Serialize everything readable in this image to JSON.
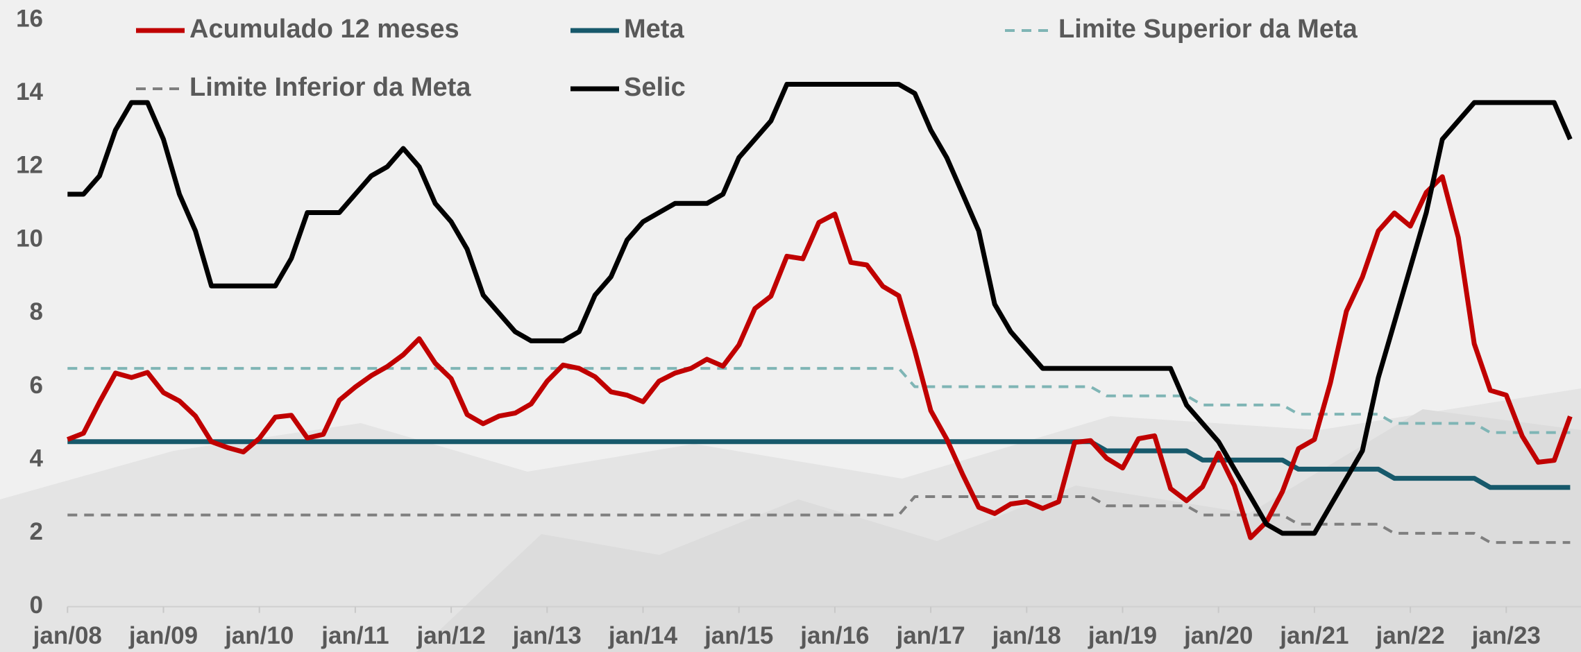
{
  "chart_data": {
    "type": "line",
    "categories": [
      "jan/08",
      null,
      null,
      null,
      null,
      null,
      "jan/09",
      null,
      null,
      null,
      null,
      null,
      "jan/10",
      null,
      null,
      null,
      null,
      null,
      "jan/11",
      null,
      null,
      null,
      null,
      null,
      "jan/12",
      null,
      null,
      null,
      null,
      null,
      "jan/13",
      null,
      null,
      null,
      null,
      null,
      "jan/14",
      null,
      null,
      null,
      null,
      null,
      "jan/15",
      null,
      null,
      null,
      null,
      null,
      "jan/16",
      null,
      null,
      null,
      null,
      null,
      "jan/17",
      null,
      null,
      null,
      null,
      null,
      "jan/18",
      null,
      null,
      null,
      null,
      null,
      "jan/19",
      null,
      null,
      null,
      null,
      null,
      "jan/20",
      null,
      null,
      null,
      null,
      null,
      "jan/21",
      null,
      null,
      null,
      null,
      null,
      "jan/22",
      null,
      null,
      null,
      null,
      null,
      "jan/23",
      null,
      null,
      null,
      null
    ],
    "ylim": [
      0,
      16
    ],
    "yticks": [
      0,
      2,
      4,
      6,
      8,
      10,
      12,
      14,
      16
    ],
    "grid": false,
    "legend": "top",
    "series": [
      {
        "name": "Acumulado 12 meses",
        "color": "#c00000",
        "style": "solid",
        "values": [
          4.56,
          4.73,
          5.58,
          6.37,
          6.25,
          6.39,
          5.84,
          5.61,
          5.2,
          4.5,
          4.34,
          4.22,
          4.59,
          5.17,
          5.22,
          4.6,
          4.7,
          5.63,
          5.99,
          6.3,
          6.55,
          6.87,
          7.31,
          6.64,
          6.22,
          5.24,
          4.99,
          5.2,
          5.28,
          5.53,
          6.15,
          6.59,
          6.5,
          6.27,
          5.86,
          5.77,
          5.59,
          6.15,
          6.37,
          6.5,
          6.75,
          6.56,
          7.14,
          8.13,
          8.47,
          9.56,
          9.49,
          10.48,
          10.71,
          9.39,
          9.32,
          8.74,
          8.48,
          6.99,
          5.35,
          4.57,
          3.6,
          2.71,
          2.54,
          2.8,
          2.86,
          2.68,
          2.86,
          4.48,
          4.53,
          4.05,
          3.78,
          4.58,
          4.66,
          3.22,
          2.89,
          3.27,
          4.19,
          3.3,
          1.88,
          2.31,
          3.14,
          4.31,
          4.56,
          6.1,
          8.06,
          8.99,
          10.25,
          10.74,
          10.38,
          11.3,
          11.73,
          10.07,
          7.17,
          5.9,
          5.77,
          4.65,
          3.94,
          3.99,
          5.19
        ]
      },
      {
        "name": "Meta",
        "color": "#17596b",
        "style": "solid",
        "values": [
          4.5,
          4.5,
          4.5,
          4.5,
          4.5,
          4.5,
          4.5,
          4.5,
          4.5,
          4.5,
          4.5,
          4.5,
          4.5,
          4.5,
          4.5,
          4.5,
          4.5,
          4.5,
          4.5,
          4.5,
          4.5,
          4.5,
          4.5,
          4.5,
          4.5,
          4.5,
          4.5,
          4.5,
          4.5,
          4.5,
          4.5,
          4.5,
          4.5,
          4.5,
          4.5,
          4.5,
          4.5,
          4.5,
          4.5,
          4.5,
          4.5,
          4.5,
          4.5,
          4.5,
          4.5,
          4.5,
          4.5,
          4.5,
          4.5,
          4.5,
          4.5,
          4.5,
          4.5,
          4.5,
          4.5,
          4.5,
          4.5,
          4.5,
          4.5,
          4.5,
          4.5,
          4.5,
          4.5,
          4.5,
          4.5,
          4.25,
          4.25,
          4.25,
          4.25,
          4.25,
          4.25,
          4.0,
          4.0,
          4.0,
          4.0,
          4.0,
          4.0,
          3.75,
          3.75,
          3.75,
          3.75,
          3.75,
          3.75,
          3.5,
          3.5,
          3.5,
          3.5,
          3.5,
          3.5,
          3.25,
          3.25,
          3.25,
          3.25,
          3.25,
          3.25
        ]
      },
      {
        "name": "Limite Superior da Meta",
        "color": "#7fb5b5",
        "style": "dashed",
        "values": [
          6.5,
          6.5,
          6.5,
          6.5,
          6.5,
          6.5,
          6.5,
          6.5,
          6.5,
          6.5,
          6.5,
          6.5,
          6.5,
          6.5,
          6.5,
          6.5,
          6.5,
          6.5,
          6.5,
          6.5,
          6.5,
          6.5,
          6.5,
          6.5,
          6.5,
          6.5,
          6.5,
          6.5,
          6.5,
          6.5,
          6.5,
          6.5,
          6.5,
          6.5,
          6.5,
          6.5,
          6.5,
          6.5,
          6.5,
          6.5,
          6.5,
          6.5,
          6.5,
          6.5,
          6.5,
          6.5,
          6.5,
          6.5,
          6.5,
          6.5,
          6.5,
          6.5,
          6.5,
          6.0,
          6.0,
          6.0,
          6.0,
          6.0,
          6.0,
          6.0,
          6.0,
          6.0,
          6.0,
          6.0,
          6.0,
          5.75,
          5.75,
          5.75,
          5.75,
          5.75,
          5.75,
          5.5,
          5.5,
          5.5,
          5.5,
          5.5,
          5.5,
          5.25,
          5.25,
          5.25,
          5.25,
          5.25,
          5.25,
          5.0,
          5.0,
          5.0,
          5.0,
          5.0,
          5.0,
          4.75,
          4.75,
          4.75,
          4.75,
          4.75,
          4.75
        ]
      },
      {
        "name": "Limite Inferior da Meta",
        "color": "#7f7f7f",
        "style": "dashed",
        "values": [
          2.5,
          2.5,
          2.5,
          2.5,
          2.5,
          2.5,
          2.5,
          2.5,
          2.5,
          2.5,
          2.5,
          2.5,
          2.5,
          2.5,
          2.5,
          2.5,
          2.5,
          2.5,
          2.5,
          2.5,
          2.5,
          2.5,
          2.5,
          2.5,
          2.5,
          2.5,
          2.5,
          2.5,
          2.5,
          2.5,
          2.5,
          2.5,
          2.5,
          2.5,
          2.5,
          2.5,
          2.5,
          2.5,
          2.5,
          2.5,
          2.5,
          2.5,
          2.5,
          2.5,
          2.5,
          2.5,
          2.5,
          2.5,
          2.5,
          2.5,
          2.5,
          2.5,
          2.5,
          3.0,
          3.0,
          3.0,
          3.0,
          3.0,
          3.0,
          3.0,
          3.0,
          3.0,
          3.0,
          3.0,
          3.0,
          2.75,
          2.75,
          2.75,
          2.75,
          2.75,
          2.75,
          2.5,
          2.5,
          2.5,
          2.5,
          2.5,
          2.5,
          2.25,
          2.25,
          2.25,
          2.25,
          2.25,
          2.25,
          2.0,
          2.0,
          2.0,
          2.0,
          2.0,
          2.0,
          1.75,
          1.75,
          1.75,
          1.75,
          1.75,
          1.75
        ]
      },
      {
        "name": "Selic",
        "color": "#000000",
        "style": "solid",
        "values": [
          11.25,
          11.25,
          11.75,
          13.0,
          13.75,
          13.75,
          12.75,
          11.25,
          10.25,
          8.75,
          8.75,
          8.75,
          8.75,
          8.75,
          9.5,
          10.75,
          10.75,
          10.75,
          11.25,
          11.75,
          12.0,
          12.5,
          12.0,
          11.0,
          10.5,
          9.75,
          8.5,
          8.0,
          7.5,
          7.25,
          7.25,
          7.25,
          7.5,
          8.5,
          9.0,
          10.0,
          10.5,
          10.75,
          11.0,
          11.0,
          11.0,
          11.25,
          12.25,
          12.75,
          13.25,
          14.25,
          14.25,
          14.25,
          14.25,
          14.25,
          14.25,
          14.25,
          14.25,
          14.0,
          13.0,
          12.25,
          11.25,
          10.25,
          8.25,
          7.5,
          7.0,
          6.5,
          6.5,
          6.5,
          6.5,
          6.5,
          6.5,
          6.5,
          6.5,
          6.5,
          5.5,
          5.0,
          4.5,
          3.75,
          3.0,
          2.25,
          2.0,
          2.0,
          2.0,
          2.75,
          3.5,
          4.25,
          6.25,
          7.75,
          9.25,
          10.75,
          12.75,
          13.25,
          13.75,
          13.75,
          13.75,
          13.75,
          13.75,
          13.75,
          12.75
        ]
      }
    ]
  }
}
